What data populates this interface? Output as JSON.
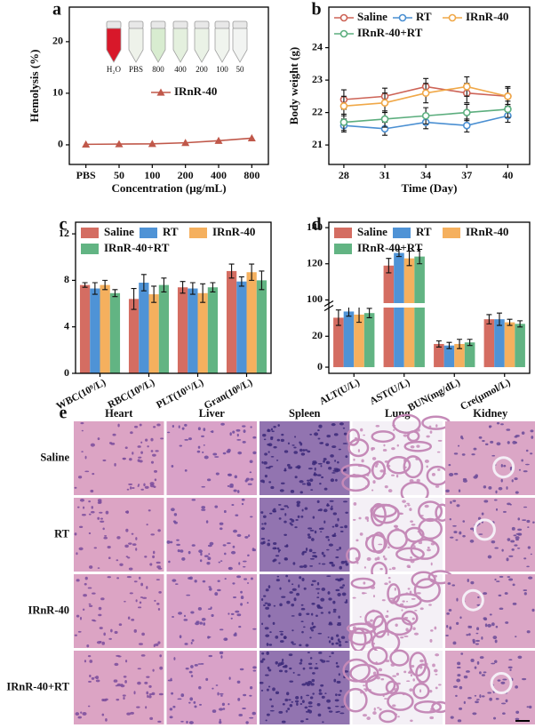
{
  "chart_data": [
    {
      "type": "line",
      "panel_label": "a",
      "ylabel": "Hemolysis (%)",
      "xlabel": "Concentration (μg/mL)",
      "categories": [
        "PBS",
        "50",
        "100",
        "200",
        "400",
        "800"
      ],
      "series": [
        {
          "name": "IRnR-40",
          "color": "#c0584a",
          "marker": "triangle",
          "values": [
            0.1,
            0.15,
            0.2,
            0.4,
            0.8,
            1.3
          ]
        }
      ],
      "ylim": [
        -3.8,
        26.7
      ],
      "yticks": [
        0,
        10,
        20
      ],
      "legend": "center",
      "inset_labels": [
        "H₂O",
        "PBS",
        "800",
        "400",
        "200",
        "100",
        "50"
      ]
    },
    {
      "type": "line",
      "panel_label": "b",
      "ylabel": "Body weight (g)",
      "xlabel": "Time (Day)",
      "x": [
        28,
        31,
        34,
        37,
        40
      ],
      "xlim": [
        26.9,
        41.6
      ],
      "xticks": [
        28,
        31,
        34,
        37,
        40
      ],
      "series": [
        {
          "name": "Saline",
          "color": "#cd6356",
          "marker": "circle",
          "values": [
            22.4,
            22.5,
            22.8,
            22.6,
            22.5
          ],
          "errors": [
            0.3,
            0.25,
            0.25,
            0.3,
            0.25
          ]
        },
        {
          "name": "RT",
          "color": "#4a8fd2",
          "marker": "circle",
          "values": [
            21.6,
            21.5,
            21.7,
            21.6,
            21.9
          ],
          "errors": [
            0.2,
            0.2,
            0.2,
            0.2,
            0.2
          ]
        },
        {
          "name": "IRnR-40",
          "color": "#f0a848",
          "marker": "circle",
          "values": [
            22.2,
            22.3,
            22.6,
            22.8,
            22.5
          ],
          "errors": [
            0.3,
            0.3,
            0.3,
            0.3,
            0.3
          ]
        },
        {
          "name": "IRnR-40+RT",
          "color": "#5cae7e",
          "marker": "circle",
          "values": [
            21.7,
            21.8,
            21.9,
            22.0,
            22.1
          ],
          "errors": [
            0.25,
            0.25,
            0.25,
            0.25,
            0.25
          ]
        }
      ],
      "ylim": [
        20.4,
        25.25
      ],
      "yticks": [
        21,
        22,
        23,
        24
      ],
      "legend": "top"
    },
    {
      "type": "bar",
      "panel_label": "c",
      "categories": [
        "WBC(10⁹/L)",
        "RBC(10⁹/L)",
        "PLT(10¹¹/L)",
        "Gran(10⁸/L)"
      ],
      "series": [
        {
          "name": "Saline",
          "color": "#d46d62",
          "values": [
            7.6,
            6.4,
            7.4,
            8.8
          ],
          "errors": [
            0.2,
            0.9,
            0.5,
            0.6
          ]
        },
        {
          "name": "RT",
          "color": "#4f93d6",
          "values": [
            7.3,
            7.8,
            7.3,
            7.9
          ],
          "errors": [
            0.5,
            0.7,
            0.5,
            0.4
          ]
        },
        {
          "name": "IRnR-40",
          "color": "#f5b05e",
          "values": [
            7.6,
            6.8,
            6.9,
            8.7
          ],
          "errors": [
            0.4,
            0.7,
            0.8,
            0.7
          ]
        },
        {
          "name": "IRnR-40+RT",
          "color": "#62b483",
          "values": [
            6.9,
            7.6,
            7.4,
            8.0
          ],
          "errors": [
            0.3,
            0.6,
            0.4,
            0.8
          ]
        }
      ],
      "ylim": [
        0,
        13
      ],
      "yticks": [
        0,
        4,
        8,
        12
      ],
      "legend": "top"
    },
    {
      "type": "bar",
      "panel_label": "d",
      "categories": [
        "ALT(U/L)",
        "AST(U/L)",
        "BUN(mg/dL)",
        "Cre(μmol/L)"
      ],
      "series": [
        {
          "name": "Saline",
          "color": "#d46d62",
          "values": [
            32,
            119,
            15,
            31
          ],
          "errors": [
            5,
            4,
            2,
            3
          ]
        },
        {
          "name": "RT",
          "color": "#4f93d6",
          "values": [
            36,
            126,
            14,
            31
          ],
          "errors": [
            3,
            2,
            2,
            4
          ]
        },
        {
          "name": "IRnR-40",
          "color": "#f5b05e",
          "values": [
            34,
            123,
            15,
            29
          ],
          "errors": [
            5,
            4,
            3,
            2
          ]
        },
        {
          "name": "IRnR-40+RT",
          "color": "#62b483",
          "values": [
            35,
            124,
            16,
            28
          ],
          "errors": [
            3,
            4,
            2,
            2
          ]
        }
      ],
      "ylim": [
        -4,
        143
      ],
      "y_break": [
        40,
        97
      ],
      "yticks": [
        0,
        20,
        100,
        120,
        140
      ],
      "legend": "top"
    }
  ],
  "histology": {
    "panel_label": "e",
    "columns": [
      "Heart",
      "Liver",
      "Spleen",
      "Lung",
      "Kidney"
    ],
    "rows": [
      "Saline",
      "RT",
      "IRnR-40",
      "IRnR-40+RT"
    ]
  }
}
